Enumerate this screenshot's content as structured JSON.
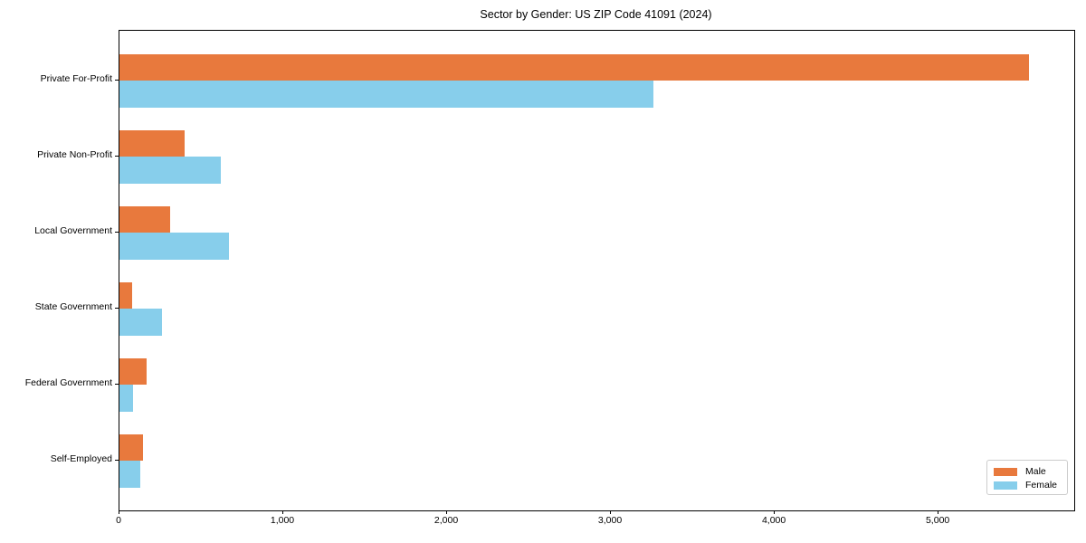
{
  "chart_data": {
    "type": "bar",
    "orientation": "horizontal",
    "title": "Sector by Gender: US ZIP Code 41091 (2024)",
    "categories": [
      "Private For-Profit",
      "Private Non-Profit",
      "Local Government",
      "State Government",
      "Federal Government",
      "Self-Employed"
    ],
    "series": [
      {
        "name": "Male",
        "color": "#E8793D",
        "values": [
          5550,
          400,
          310,
          80,
          165,
          145
        ]
      },
      {
        "name": "Female",
        "color": "#87CEEB",
        "values": [
          3260,
          620,
          670,
          260,
          85,
          125
        ]
      }
    ],
    "xlabel": "",
    "ylabel": "",
    "xlim": [
      0,
      5828
    ],
    "x_ticks": [
      0,
      1000,
      2000,
      3000,
      4000,
      5000
    ],
    "x_tick_labels": [
      "0",
      "1,000",
      "2,000",
      "3,000",
      "4,000",
      "5,000"
    ],
    "grid": false,
    "plot_background": "#ffffff",
    "spine_color": "#000000",
    "legend": {
      "position": "lower right",
      "entries": [
        "Male",
        "Female"
      ]
    }
  }
}
